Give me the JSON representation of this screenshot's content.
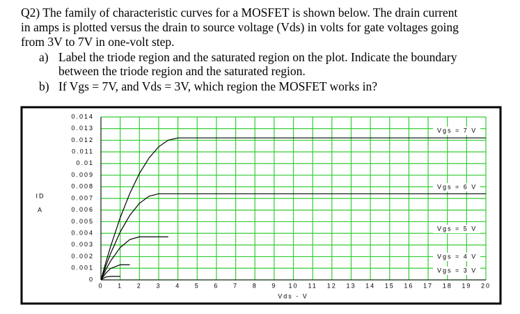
{
  "question": {
    "lines": [
      "Q2) The family of characteristic curves for a MOSFET is shown below. The drain current",
      "in amps is plotted versus the drain to source voltage (Vds) in volts for gate voltages going",
      "from 3V to 7V in one-volt step."
    ],
    "parts": [
      {
        "label": "a)",
        "lines": [
          "Label the triode region and the saturated region on the plot. Indicate the boundary",
          "between the triode region and the saturated region."
        ]
      },
      {
        "label": "b)",
        "lines": [
          "If  Vgs = 7V, and Vds = 3V, which region the MOSFET works in?"
        ]
      }
    ]
  },
  "chart_data": {
    "type": "line",
    "x_label": "Vds - V",
    "y_label": "ID",
    "y_unit": "A",
    "x": [
      0,
      0.25,
      0.5,
      1,
      1.5,
      2,
      2.5,
      3,
      3.5,
      4,
      20
    ],
    "series": [
      {
        "name": "Vgs = 7 V",
        "color": "#000000",
        "values": [
          0,
          0.00148,
          0.00286,
          0.00534,
          0.00743,
          0.00915,
          0.01048,
          0.01144,
          0.01201,
          0.0122,
          0.0122
        ]
      },
      {
        "name": "Vgs = 6 V",
        "color": "#000000",
        "values": [
          0,
          0.00118,
          0.00226,
          0.00411,
          0.00555,
          0.00658,
          0.00719,
          0.0074,
          0.0074,
          0.0074,
          0.0074
        ]
      },
      {
        "name": "Vgs = 5 V",
        "color": "#000000",
        "values": [
          0,
          0.00087,
          0.00162,
          0.00278,
          0.00347,
          0.0037,
          0.0037,
          0.0037,
          0.0037,
          null,
          null
        ]
      },
      {
        "name": "Vgs = 4 V",
        "color": "#000000",
        "values": [
          0,
          0.00057,
          0.00098,
          0.0013,
          0.0013,
          null,
          null,
          null,
          null,
          null,
          null
        ]
      },
      {
        "name": "Vgs = 3 V",
        "color": "#000000",
        "values": [
          0,
          0.00025,
          0.0003,
          0.0003,
          null,
          null,
          null,
          null,
          null,
          null,
          null
        ]
      }
    ],
    "xlim": [
      0,
      20
    ],
    "ylim": [
      0,
      0.014
    ],
    "xticks": [
      0,
      1,
      2,
      3,
      4,
      5,
      6,
      7,
      8,
      9,
      10,
      11,
      12,
      13,
      14,
      15,
      16,
      17,
      18,
      19,
      20
    ],
    "yticks": [
      0,
      0.001,
      0.002,
      0.003,
      0.004,
      0.005,
      0.006,
      0.007,
      0.008,
      0.009,
      0.01,
      0.011,
      0.012,
      0.013,
      0.014
    ],
    "grid": true,
    "grid_color": "#33cc33"
  }
}
